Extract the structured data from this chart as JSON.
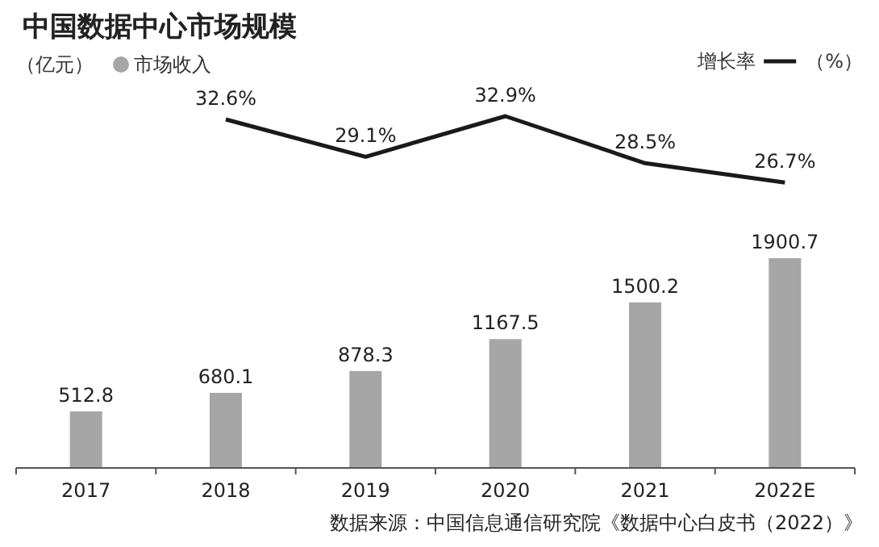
{
  "chart_data": [
    {
      "type": "bar",
      "categories": [
        "2017",
        "2018",
        "2019",
        "2020",
        "2021",
        "2022E"
      ],
      "series": [
        {
          "name": "市场收入",
          "color": "#a6a6a6",
          "values": [
            512.8,
            680.1,
            878.3,
            1167.5,
            1500.2,
            1900.7
          ],
          "value_labels": [
            "512.8",
            "680.1",
            "878.3",
            "1167.5",
            "1500.2",
            "1900.7"
          ]
        }
      ],
      "legend": "top left",
      "tick_labels": "x",
      "grid": false,
      "annotations": [
        "（亿元）",
        "数据来源：中国信息通信研究院《数据中心白皮书（2022）》"
      ]
    },
    {
      "type": "line",
      "title": "中国数据中心市场规模",
      "categories": [
        null,
        null,
        null,
        null,
        null,
        null
      ],
      "series": [
        {
          "name": "增长率",
          "color": "#1a1a1a",
          "values": [
            null,
            32.6,
            29.1,
            32.9,
            28.5,
            26.7
          ],
          "value_labels": [
            null,
            "32.6%",
            "29.1%",
            "32.9%",
            "28.5%",
            "26.7%"
          ]
        }
      ],
      "legend": "top right",
      "tick_labels": false,
      "grid": false,
      "marker": "none",
      "line_style": "solid",
      "annotations": [
        "（%）"
      ]
    }
  ]
}
